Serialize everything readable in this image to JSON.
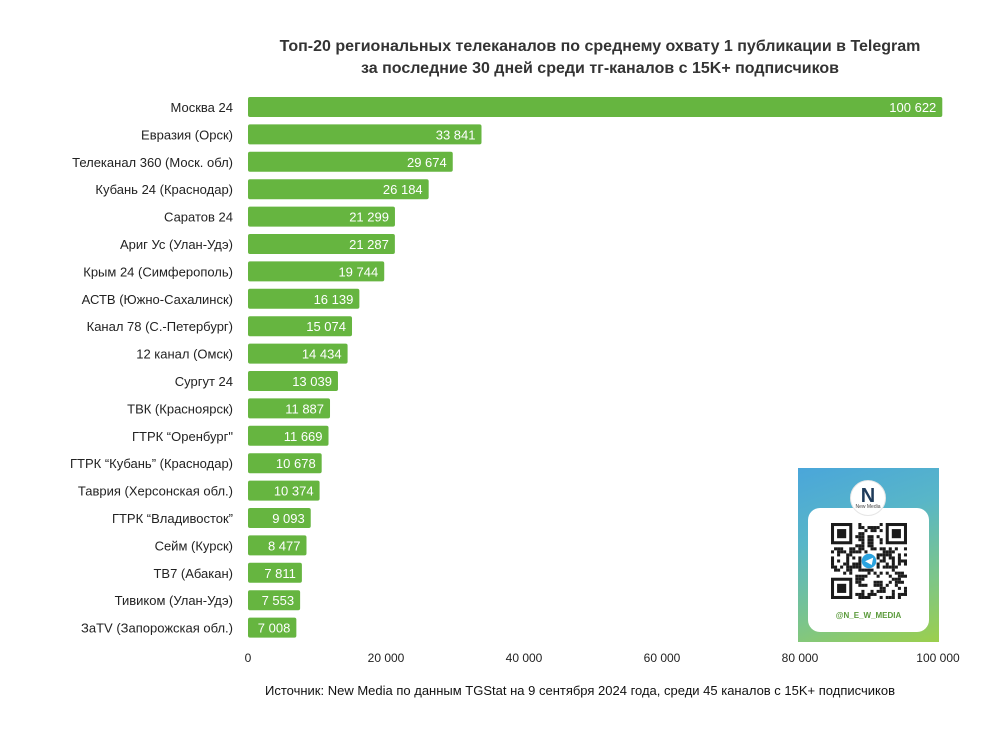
{
  "title_lines": [
    "Топ-20 региональных телеканалов по среднему охвату 1 публикации в Telegram",
    "за последние 30 дней среди тг-каналов с 15K+ подписчиков"
  ],
  "source": "Источник: New Media по данным TGStat на 9 сентября 2024 года, среди 45 каналов с 15K+ подписчиков",
  "colors": {
    "bar": "#66b540",
    "bar_label": "#ffffff",
    "axis_text": "#222222",
    "grid": "#d9d9d9"
  },
  "qr": {
    "logo_letter": "N",
    "logo_sub": "New Media",
    "handle": "@N_E_W_MEDIA",
    "icon": "qr-code-icon"
  },
  "chart_data": {
    "type": "bar",
    "orientation": "horizontal",
    "categories": [
      "Москва 24",
      "Евразия (Орск)",
      "Телеканал 360 (Моск. обл)",
      "Кубань 24 (Краснодар)",
      "Саратов 24",
      "Ариг Ус (Улан-Удэ)",
      "Крым 24 (Симферополь)",
      "АСТВ (Южно-Сахалинск)",
      "Канал 78 (С.-Петербург)",
      "12 канал (Омск)",
      "Сургут 24",
      "ТВК (Красноярск)",
      "ГТРК “Оренбург\"",
      "ГТРК “Кубань” (Краснодар)",
      "Таврия (Херсонская обл.)",
      "ГТРК “Владивосток”",
      "Сейм (Курск)",
      "ТВ7 (Абакан)",
      "Тивиком (Улан-Удэ)",
      "ЗаTV (Запорожская обл.)"
    ],
    "values": [
      100622,
      33841,
      29674,
      26184,
      21299,
      21287,
      19744,
      16139,
      15074,
      14434,
      13039,
      11887,
      11669,
      10678,
      10374,
      9093,
      8477,
      7811,
      7553,
      7008
    ],
    "value_labels": [
      "100 622",
      "33 841",
      "29 674",
      "26 184",
      "21 299",
      "21 287",
      "19 744",
      "16 139",
      "15 074",
      "14 434",
      "13 039",
      "11 887",
      "11 669",
      "10 678",
      "10 374",
      "9 093",
      "8 477",
      "7 811",
      "7 553",
      "7 008"
    ],
    "xlim": [
      0,
      100000
    ],
    "x_ticks": [
      0,
      20000,
      40000,
      60000,
      80000,
      100000
    ],
    "x_tick_labels": [
      "0",
      "20 000",
      "40 000",
      "60 000",
      "80 000",
      "100 000"
    ],
    "grid": false
  }
}
